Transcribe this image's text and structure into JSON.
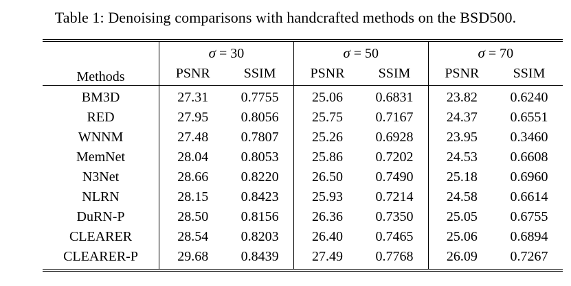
{
  "title": "Table 1: Denoising comparisons with handcrafted methods on the BSD500.",
  "table": {
    "methods_header": "Methods",
    "groups": [
      {
        "sigma": "σ",
        "eq": " = 30",
        "sub": [
          "PSNR",
          "SSIM"
        ]
      },
      {
        "sigma": "σ",
        "eq": " = 50",
        "sub": [
          "PSNR",
          "SSIM"
        ]
      },
      {
        "sigma": "σ",
        "eq": " = 70",
        "sub": [
          "PSNR",
          "SSIM"
        ]
      }
    ],
    "rows": [
      {
        "method": "BM3D",
        "values": [
          "27.31",
          "0.7755",
          "25.06",
          "0.6831",
          "23.82",
          "0.6240"
        ]
      },
      {
        "method": "RED",
        "values": [
          "27.95",
          "0.8056",
          "25.75",
          "0.7167",
          "24.37",
          "0.6551"
        ]
      },
      {
        "method": "WNNM",
        "values": [
          "27.48",
          "0.7807",
          "25.26",
          "0.6928",
          "23.95",
          "0.3460"
        ]
      },
      {
        "method": "MemNet",
        "values": [
          "28.04",
          "0.8053",
          "25.86",
          "0.7202",
          "24.53",
          "0.6608"
        ]
      },
      {
        "method": "N3Net",
        "values": [
          "28.66",
          "0.8220",
          "26.50",
          "0.7490",
          "25.18",
          "0.6960"
        ]
      },
      {
        "method": "NLRN",
        "values": [
          "28.15",
          "0.8423",
          "25.93",
          "0.7214",
          "24.58",
          "0.6614"
        ]
      },
      {
        "method": "DuRN-P",
        "values": [
          "28.50",
          "0.8156",
          "26.36",
          "0.7350",
          "25.05",
          "0.6755"
        ]
      },
      {
        "method": "CLEARER",
        "values": [
          "28.54",
          "0.8203",
          "26.40",
          "0.7465",
          "25.06",
          "0.6894"
        ]
      },
      {
        "method": "CLEARER-P",
        "values": [
          "29.68",
          "0.8439",
          "27.49",
          "0.7768",
          "26.09",
          "0.7267"
        ]
      }
    ]
  }
}
